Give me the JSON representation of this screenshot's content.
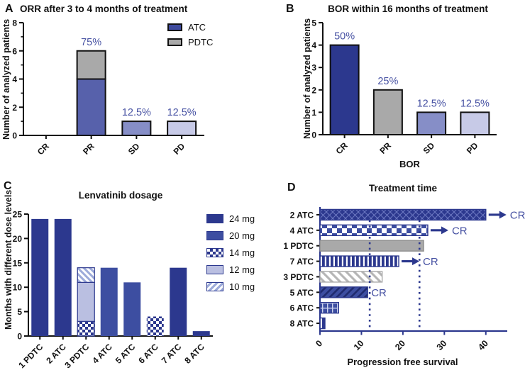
{
  "colors": {
    "navy": "#2c388e",
    "blue20": "#3d4ea1",
    "atc_blue": "#5761ab",
    "sd_blue": "#868ec7",
    "pd_lavender": "#c7cae7",
    "lavender12": "#babfe1",
    "gray": "#a9a9a9",
    "annotation_blue": "#4752a3",
    "axis_black": "#111111"
  },
  "chart_data": [
    {
      "panel_letter": "A",
      "type": "bar",
      "title": "ORR after 3 to 4 months of treatment",
      "ylabel": "Number of analyzed patients",
      "xlabel": "",
      "ylim": [
        0,
        8
      ],
      "yticks": [
        0,
        2,
        4,
        6,
        8
      ],
      "minor_unit": 1,
      "categories": [
        "CR",
        "PR",
        "SD",
        "PD"
      ],
      "bars": [
        {
          "category": "CR",
          "segments": [],
          "annotation": ""
        },
        {
          "category": "PR",
          "segments": [
            {
              "name": "ATC",
              "value": 4,
              "fill": "#5761ab"
            },
            {
              "name": "PDTC",
              "value": 2,
              "fill": "#a9a9a9"
            }
          ],
          "annotation": "75%"
        },
        {
          "category": "SD",
          "segments": [
            {
              "name": "SD",
              "value": 1,
              "fill": "#868ec7"
            }
          ],
          "annotation": "12.5%"
        },
        {
          "category": "PD",
          "segments": [
            {
              "name": "PD",
              "value": 1,
              "fill": "#c7cae7"
            }
          ],
          "annotation": "12.5%"
        }
      ],
      "bar_outline": "#111111",
      "legend": {
        "position": "top-right",
        "items": [
          {
            "label": "ATC",
            "fill": "#3e4a9d"
          },
          {
            "label": "PDTC",
            "fill": "#a9a9a9"
          }
        ]
      }
    },
    {
      "panel_letter": "B",
      "type": "bar",
      "title": "BOR within 16 months of treatment",
      "ylabel": "Number of analyzed patients",
      "xlabel": "BOR",
      "ylim": [
        0,
        5
      ],
      "yticks": [
        0,
        1,
        2,
        3,
        4,
        5
      ],
      "categories": [
        "CR",
        "PR",
        "SD",
        "PD"
      ],
      "bars": [
        {
          "category": "CR",
          "segments": [
            {
              "name": "CR",
              "value": 4,
              "fill": "#2c388e"
            }
          ],
          "annotation": "50%"
        },
        {
          "category": "PR",
          "segments": [
            {
              "name": "PR",
              "value": 2,
              "fill": "#a9a9a9"
            }
          ],
          "annotation": "25%"
        },
        {
          "category": "SD",
          "segments": [
            {
              "name": "SD",
              "value": 1,
              "fill": "#868ec7"
            }
          ],
          "annotation": "12.5%"
        },
        {
          "category": "PD",
          "segments": [
            {
              "name": "PD",
              "value": 1,
              "fill": "#c7cae7"
            }
          ],
          "annotation": "12.5%"
        }
      ],
      "bar_outline": "#111111"
    },
    {
      "panel_letter": "C",
      "type": "stacked-bar",
      "title": "Lenvatinib dosage",
      "ylabel": "Months with different dose levels",
      "xlabel": "",
      "ylim": [
        0,
        25
      ],
      "yticks": [
        0,
        5,
        10,
        15,
        20,
        25
      ],
      "categories": [
        "1 PDTC",
        "2 ATC",
        "3 PDTC",
        "4 ATC",
        "5 ATC",
        "6 ATC",
        "7 ATC",
        "8 ATC"
      ],
      "bars": [
        {
          "category": "1 PDTC",
          "segments": [
            {
              "name": "24 mg",
              "value": 24,
              "fill": "#2c388e"
            }
          ]
        },
        {
          "category": "2 ATC",
          "segments": [
            {
              "name": "24 mg",
              "value": 24,
              "fill": "#2c388e"
            }
          ]
        },
        {
          "category": "3 PDTC",
          "outlined": true,
          "segments": [
            {
              "name": "14 mg",
              "value": 3,
              "pattern": "checker14"
            },
            {
              "name": "12 mg",
              "value": 8,
              "fill": "#babfe1"
            },
            {
              "name": "10 mg",
              "value": 3,
              "pattern": "hatch10"
            }
          ]
        },
        {
          "category": "4 ATC",
          "segments": [
            {
              "name": "20 mg",
              "value": 14,
              "fill": "#3d4ea1"
            }
          ]
        },
        {
          "category": "5 ATC",
          "segments": [
            {
              "name": "20 mg",
              "value": 11,
              "fill": "#3d4ea1"
            }
          ]
        },
        {
          "category": "6 ATC",
          "segments": [
            {
              "name": "14 mg",
              "value": 4,
              "pattern": "checker14"
            }
          ]
        },
        {
          "category": "7 ATC",
          "segments": [
            {
              "name": "24 mg",
              "value": 14,
              "fill": "#2c388e"
            }
          ]
        },
        {
          "category": "8 ATC",
          "segments": [
            {
              "name": "24 mg",
              "value": 1,
              "fill": "#2c388e"
            }
          ]
        }
      ],
      "legend": {
        "position": "right",
        "items": [
          {
            "label": "24 mg",
            "fill": "#2c388e"
          },
          {
            "label": "20 mg",
            "fill": "#3d4ea1"
          },
          {
            "label": "14 mg",
            "pattern": "checker14"
          },
          {
            "label": "12 mg",
            "fill": "#babfe1"
          },
          {
            "label": "10 mg",
            "pattern": "hatch10"
          }
        ]
      }
    },
    {
      "panel_letter": "D",
      "type": "hbar",
      "title": "Treatment time",
      "xlabel": "Progression free survival",
      "ylabel": "",
      "xlim": [
        0,
        45
      ],
      "xticks": [
        0,
        10,
        20,
        30,
        40
      ],
      "dotted_lines": [
        12,
        24
      ],
      "bars": [
        {
          "category": "2 ATC",
          "value": 40,
          "pattern": "crosshatchNavy",
          "arrow": true,
          "annotation": "CR"
        },
        {
          "category": "4 ATC",
          "value": 26,
          "pattern": "checkerBig",
          "arrow": true,
          "annotation": "CR"
        },
        {
          "category": "1 PDTC",
          "value": 25,
          "fill": "#a9a9a9"
        },
        {
          "category": "7 ATC",
          "value": 19,
          "pattern": "vstripes",
          "arrow": true,
          "annotation": "CR"
        },
        {
          "category": "3 PDTC",
          "value": 15,
          "pattern": "diagGray"
        },
        {
          "category": "5 ATC",
          "value": 11.5,
          "pattern": "diagNavy",
          "arrow": false,
          "annotation": "CR"
        },
        {
          "category": "6 ATC",
          "value": 4.5,
          "pattern": "gridNavy"
        },
        {
          "category": "8 ATC",
          "value": 1.2,
          "pattern": "vstripes"
        }
      ],
      "axis_color": "#2c388e"
    }
  ]
}
